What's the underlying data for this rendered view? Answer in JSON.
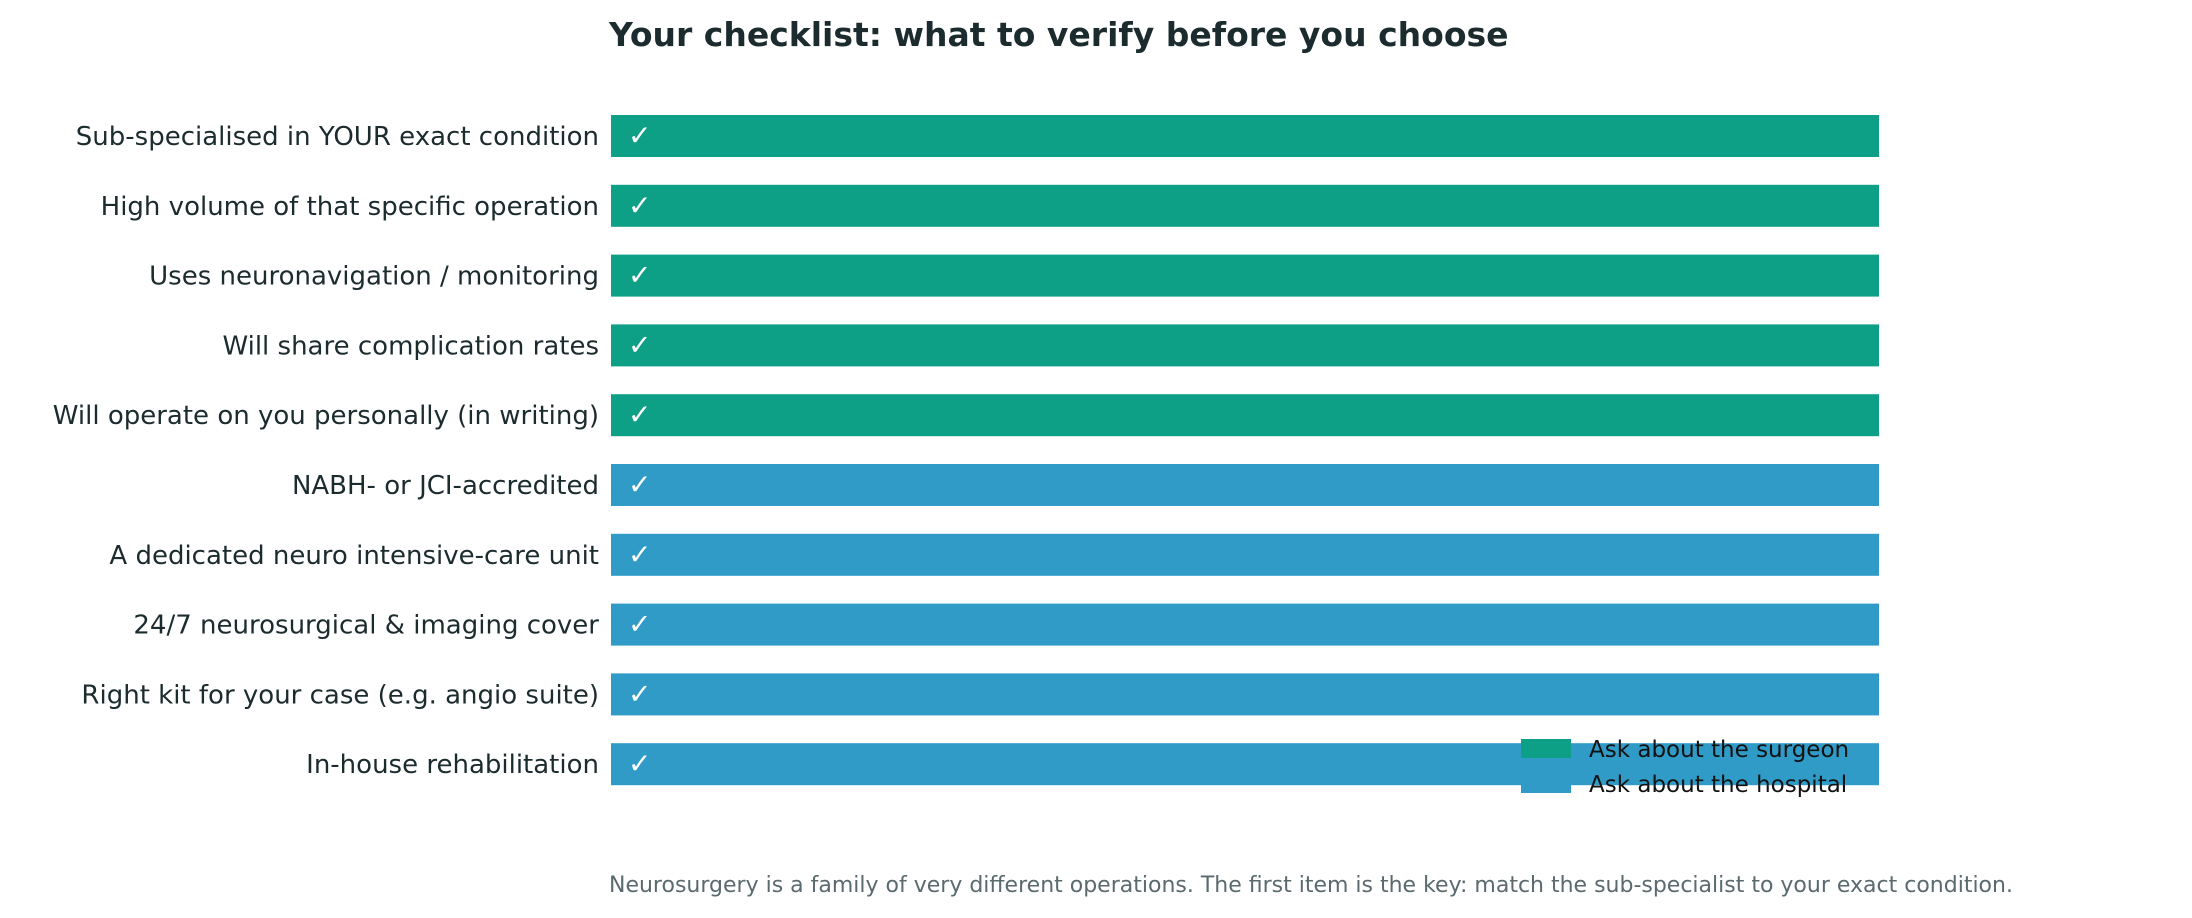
{
  "chart_data": {
    "type": "bar",
    "orientation": "horizontal",
    "title": "Your checklist: what to verify before you choose",
    "caption": "Neurosurgery is a family of very different operations. The first item is the key: match the sub-specialist to your exact condition.",
    "check_mark": "✓",
    "xlim": [
      0,
      1
    ],
    "axes_visible": false,
    "grid": false,
    "legend_position": "bottom-right",
    "series": [
      {
        "name": "Ask about the surgeon",
        "color": "#0ea087"
      },
      {
        "name": "Ask about the hospital",
        "color": "#2f9bc6"
      }
    ],
    "categories": [
      "Sub-specialised in YOUR exact condition",
      "High volume of that specific operation",
      "Uses neuronavigation / monitoring",
      "Will share complication rates",
      "Will operate on you personally (in writing)",
      "NABH- or JCI-accredited",
      "A dedicated neuro intensive-care unit",
      "24/7 neurosurgical & imaging cover",
      "Right kit for your case (e.g. angio suite)",
      "In-house rehabilitation"
    ],
    "values": [
      1,
      1,
      1,
      1,
      1,
      1,
      1,
      1,
      1,
      1
    ],
    "groups": [
      0,
      0,
      0,
      0,
      0,
      1,
      1,
      1,
      1,
      1
    ]
  }
}
